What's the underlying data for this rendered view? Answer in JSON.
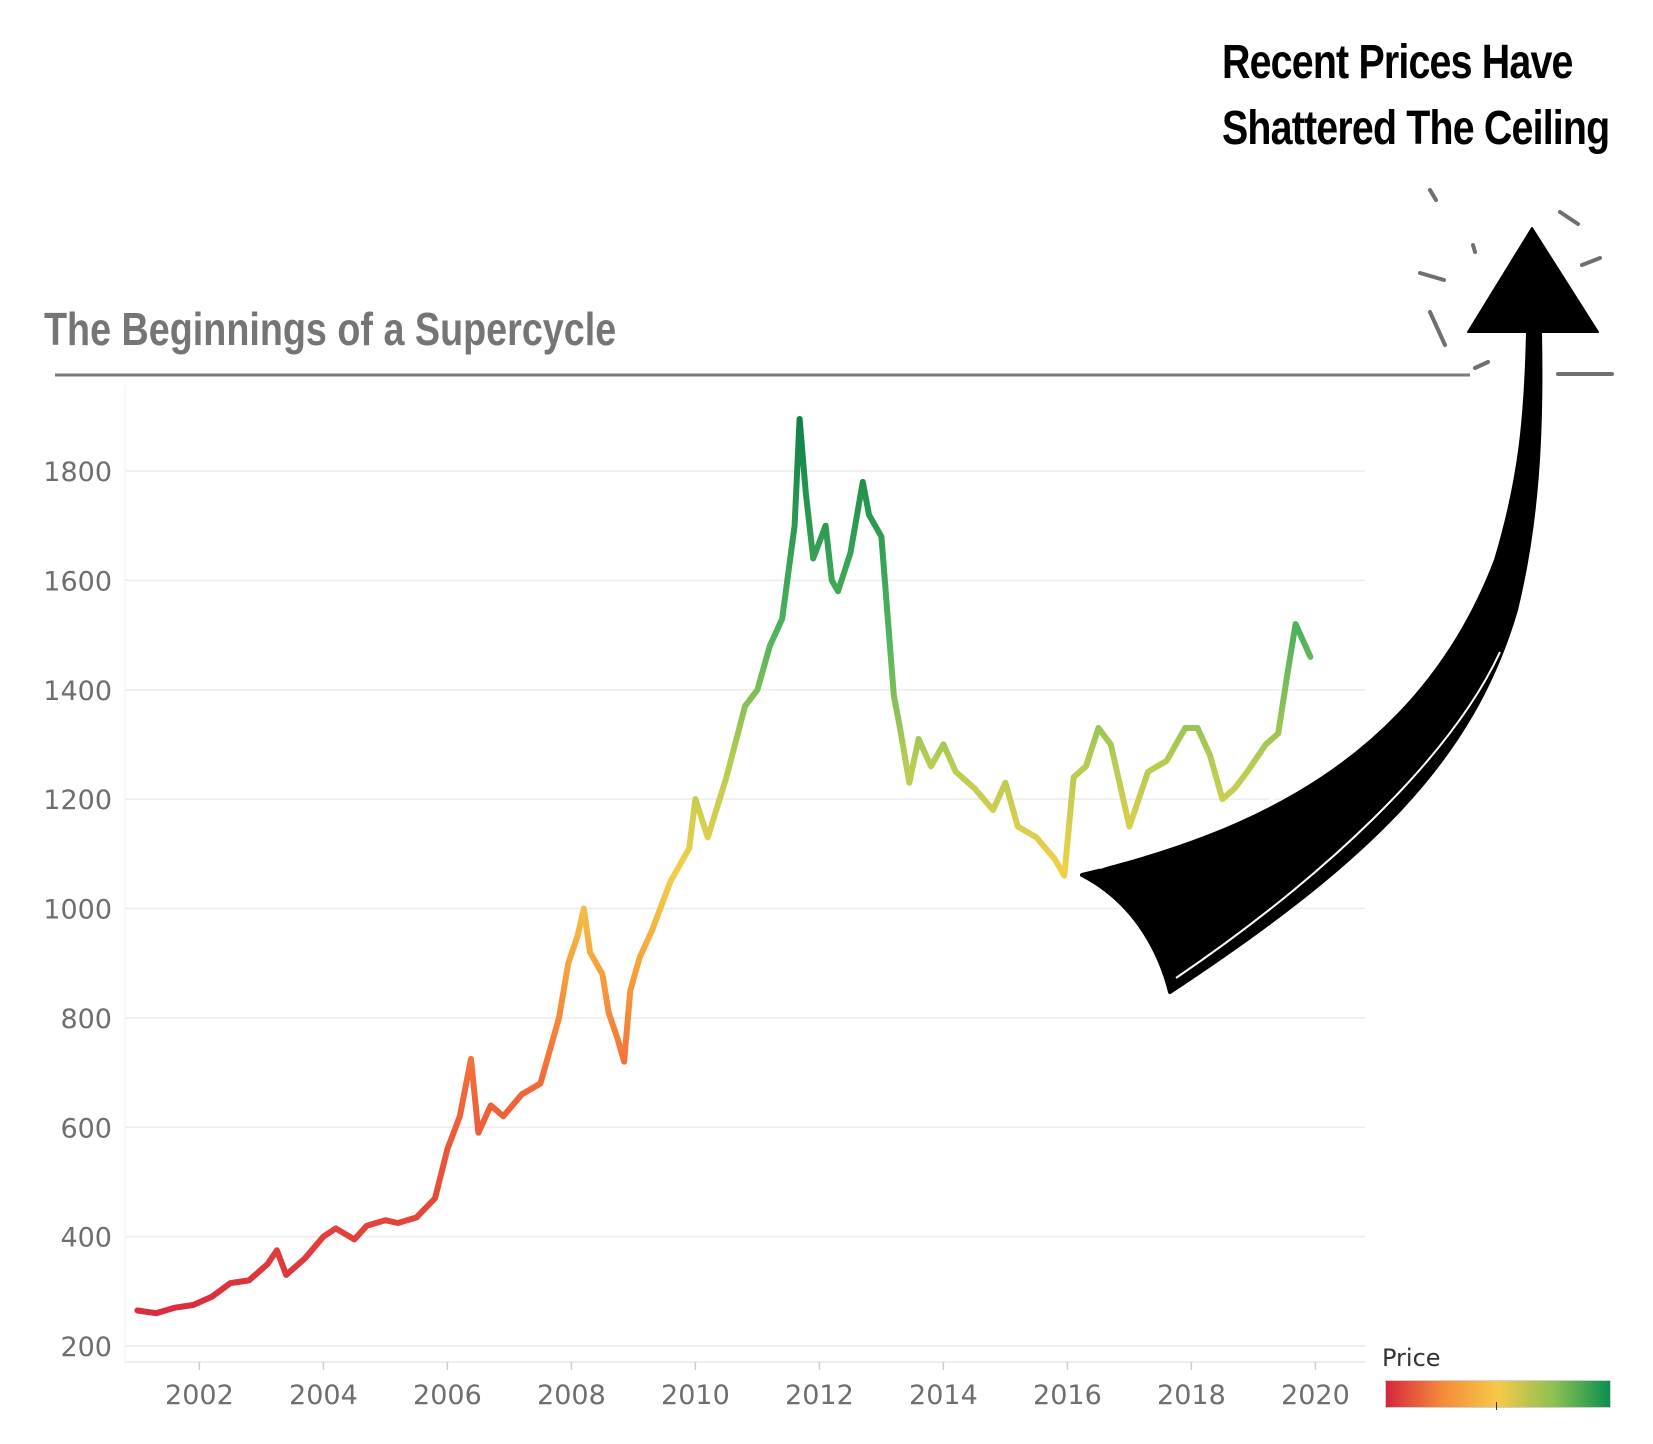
{
  "annotation": {
    "line1": "Recent Prices Have",
    "line2": "Shattered The Ceiling"
  },
  "chart_data": {
    "type": "line",
    "title": "The Beginnings of a Supercycle",
    "xlabel": "",
    "ylabel": "",
    "xlim": [
      2000.8,
      2020.8
    ],
    "ylim": [
      200,
      1900
    ],
    "x_ticks": [
      "2002",
      "2004",
      "2006",
      "2008",
      "2010",
      "2012",
      "2014",
      "2016",
      "2018",
      "2020"
    ],
    "y_ticks": [
      "200",
      "400",
      "600",
      "800",
      "1000",
      "1200",
      "1400",
      "1600",
      "1800"
    ],
    "grid": true,
    "color_legend": {
      "title": "Price",
      "colors": [
        "#d7263d",
        "#f58a3a",
        "#f7c948",
        "#8cc152",
        "#0a8f4f"
      ],
      "position": "bottom-right"
    },
    "series": [
      {
        "x": [
          2001.0,
          2001.3,
          2001.6,
          2001.9,
          2002.2,
          2002.5,
          2002.8,
          2003.1,
          2003.25,
          2003.4,
          2003.7,
          2004.0,
          2004.2,
          2004.5,
          2004.7,
          2005.0,
          2005.2,
          2005.5,
          2005.8,
          2006.0,
          2006.2,
          2006.38,
          2006.5,
          2006.7,
          2006.9,
          2007.2,
          2007.5,
          2007.8,
          2007.95,
          2008.1,
          2008.2,
          2008.3,
          2008.5,
          2008.6,
          2008.75,
          2008.85,
          2008.95,
          2009.1,
          2009.3,
          2009.6,
          2009.9,
          2010.0,
          2010.2,
          2010.5,
          2010.8,
          2011.0,
          2011.2,
          2011.4,
          2011.6,
          2011.68,
          2011.78,
          2011.9,
          2012.1,
          2012.2,
          2012.3,
          2012.5,
          2012.7,
          2012.8,
          2013.0,
          2013.2,
          2013.3,
          2013.45,
          2013.6,
          2013.8,
          2014.0,
          2014.2,
          2014.5,
          2014.8,
          2015.0,
          2015.2,
          2015.5,
          2015.8,
          2015.95,
          2016.1,
          2016.3,
          2016.5,
          2016.7,
          2016.9,
          2017.0,
          2017.3,
          2017.6,
          2017.9,
          2018.1,
          2018.3,
          2018.5,
          2018.7,
          2018.9,
          2019.2,
          2019.4,
          2019.55,
          2019.68,
          2019.8,
          2019.92
        ],
        "y": [
          265,
          260,
          270,
          275,
          290,
          315,
          320,
          350,
          375,
          330,
          360,
          400,
          415,
          395,
          420,
          430,
          425,
          435,
          470,
          560,
          620,
          725,
          590,
          640,
          620,
          660,
          680,
          800,
          900,
          950,
          1000,
          920,
          880,
          810,
          760,
          720,
          850,
          910,
          960,
          1050,
          1110,
          1200,
          1130,
          1240,
          1370,
          1400,
          1480,
          1530,
          1700,
          1895,
          1760,
          1640,
          1700,
          1600,
          1580,
          1650,
          1780,
          1720,
          1680,
          1390,
          1330,
          1230,
          1310,
          1260,
          1300,
          1250,
          1220,
          1180,
          1230,
          1150,
          1130,
          1090,
          1060,
          1240,
          1260,
          1330,
          1300,
          1200,
          1150,
          1250,
          1270,
          1330,
          1330,
          1280,
          1200,
          1220,
          1250,
          1300,
          1320,
          1430,
          1520,
          1490,
          1460
        ]
      }
    ]
  }
}
